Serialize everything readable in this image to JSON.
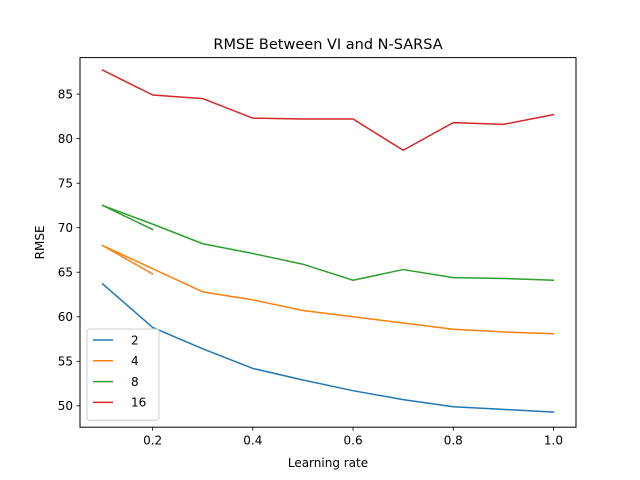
{
  "chart_data": {
    "type": "line",
    "title": "RMSE Between VI and N-SARSA",
    "xlabel": "Learning rate",
    "ylabel": "RMSE",
    "xlim": [
      0.055,
      1.045
    ],
    "ylim": [
      47.6,
      89.1
    ],
    "xticks": [
      0.2,
      0.4,
      0.6,
      0.8,
      1.0
    ],
    "xtick_labels": [
      "0.2",
      "0.4",
      "0.6",
      "0.8",
      "1.0"
    ],
    "yticks": [
      50,
      55,
      60,
      65,
      70,
      75,
      80,
      85
    ],
    "ytick_labels": [
      "50",
      "55",
      "60",
      "65",
      "70",
      "75",
      "80",
      "85"
    ],
    "grid": false,
    "legend": {
      "position": "lower-left"
    },
    "series": [
      {
        "name": "2",
        "color": "#1f77b4",
        "x": [
          0.1,
          0.2,
          0.3,
          0.4,
          0.5,
          0.6,
          0.7,
          0.8,
          0.9,
          1.0
        ],
        "y": [
          63.7,
          58.8,
          56.4,
          54.2,
          52.9,
          51.7,
          50.7,
          49.9,
          49.6,
          49.3
        ]
      },
      {
        "name": "4",
        "color": "#ff7f0e",
        "x": [
          0.1,
          0.2,
          0.3,
          0.4,
          0.5,
          0.6,
          0.7,
          0.8,
          0.9,
          1.0
        ],
        "y": [
          68.0,
          65.4,
          62.8,
          61.9,
          60.7,
          60.0,
          59.3,
          58.6,
          58.3,
          58.1
        ]
      },
      {
        "name": "",
        "color": "#ff7f0e",
        "x": [
          0.1,
          0.2
        ],
        "y": [
          68.0,
          64.8
        ]
      },
      {
        "name": "8",
        "color": "#2ca02c",
        "x": [
          0.1,
          0.2,
          0.3,
          0.4,
          0.5,
          0.6,
          0.7,
          0.8,
          0.9,
          1.0
        ],
        "y": [
          72.5,
          70.4,
          68.2,
          67.1,
          65.9,
          64.1,
          65.3,
          64.4,
          64.3,
          64.1
        ]
      },
      {
        "name": "",
        "color": "#2ca02c",
        "x": [
          0.1,
          0.2
        ],
        "y": [
          72.5,
          69.8
        ]
      },
      {
        "name": "16",
        "color": "#d62728",
        "x": [
          0.1,
          0.2,
          0.3,
          0.4,
          0.5,
          0.6,
          0.7,
          0.8,
          0.9,
          1.0
        ],
        "y": [
          87.7,
          84.9,
          84.5,
          82.3,
          82.2,
          82.2,
          78.7,
          81.8,
          81.6,
          82.7
        ]
      }
    ]
  }
}
